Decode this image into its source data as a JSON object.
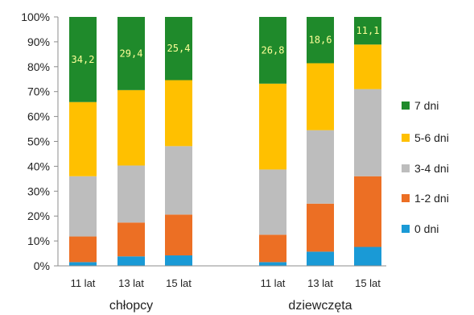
{
  "chart_data": {
    "type": "bar",
    "stacked": true,
    "normalized_percent": true,
    "title": "",
    "xlabel": "",
    "ylabel": "",
    "ylim": [
      0,
      100
    ],
    "y_ticks": [
      "0%",
      "10%",
      "20%",
      "30%",
      "40%",
      "50%",
      "60%",
      "70%",
      "80%",
      "90%",
      "100%"
    ],
    "groups": [
      {
        "label": "chłopcy",
        "categories": [
          "11 lat",
          "13 lat",
          "15 lat"
        ]
      },
      {
        "label": "dziewczęta",
        "categories": [
          "11 lat",
          "13 lat",
          "15 lat"
        ]
      }
    ],
    "categories": [
      "11 lat",
      "13 lat",
      "15 lat",
      "11 lat",
      "13 lat",
      "15 lat"
    ],
    "series": [
      {
        "name": "0 dni",
        "color": "#1a9ad6",
        "values": [
          1.5,
          3.8,
          4.2,
          1.5,
          5.7,
          7.6
        ]
      },
      {
        "name": "1-2 dni",
        "color": "#ec6f24",
        "values": [
          10.3,
          13.6,
          16.4,
          11.0,
          19.3,
          28.4
        ]
      },
      {
        "name": "3-4 dni",
        "color": "#bdbdbd",
        "values": [
          24.2,
          22.9,
          27.5,
          26.2,
          29.5,
          35.0
        ]
      },
      {
        "name": "5-6 dni",
        "color": "#ffc000",
        "values": [
          29.8,
          30.3,
          26.5,
          34.5,
          26.9,
          17.9
        ]
      },
      {
        "name": "7 dni",
        "color": "#1f8a2b",
        "values": [
          34.2,
          29.4,
          25.4,
          26.8,
          18.6,
          11.1
        ]
      }
    ],
    "data_labels": {
      "series": "7 dni",
      "values": [
        "34,2",
        "29,4",
        "25,4",
        "26,8",
        "18,6",
        "11,1"
      ]
    },
    "legend": {
      "position": "right",
      "order": [
        "7 dni",
        "5-6 dni",
        "3-4 dni",
        "1-2 dni",
        "0 dni"
      ]
    },
    "grid": false
  }
}
